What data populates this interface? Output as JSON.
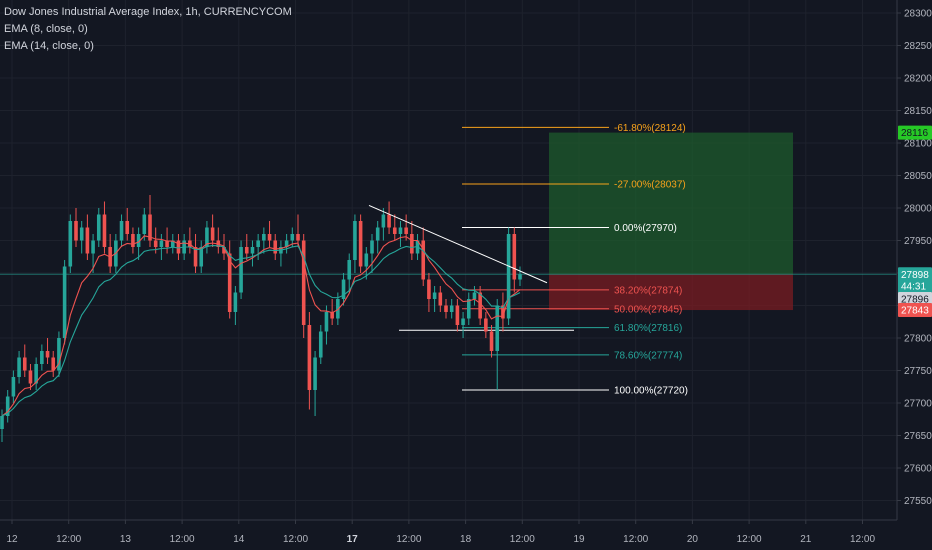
{
  "header": {
    "title": "Dow Jones Industrial Average Index, 1h, CURRENCYCOM",
    "indicators": [
      "EMA (8, close, 0)",
      "EMA (14, close, 0)"
    ]
  },
  "colors": {
    "background": "#131722",
    "up": "#26a69a",
    "down": "#ef5350",
    "ema8": "#ef5350",
    "ema14": "#26a69a",
    "fib_orange": "#f7a21b",
    "fib_white": "#ffffff",
    "fib_red": "#ef5350",
    "fib_teal": "#26a69a",
    "target_zone": "#1e5b2c",
    "stop_zone": "#7a1c22",
    "price_line": "#26a69a",
    "text": "#b2b5be"
  },
  "price_axis": {
    "ticks": [
      "28300",
      "28250",
      "28200",
      "28150",
      "28100",
      "28050",
      "28000",
      "27950",
      "27900",
      "27850",
      "27800",
      "27750",
      "27700",
      "27650",
      "27600",
      "27550"
    ],
    "labels": [
      {
        "text": "28116",
        "value": 28116,
        "color": "#26c926",
        "text_color": "#131722"
      },
      {
        "text": "27898",
        "value": 27898,
        "color": "#26a69a",
        "text_color": "#ffffff"
      },
      {
        "text": "44:31",
        "value": 27880,
        "color": "#26a69a",
        "text_color": "#ffffff"
      },
      {
        "text": "27896",
        "value": 27860,
        "color": "#d1d4dc",
        "text_color": "#131722"
      },
      {
        "text": "27843",
        "value": 27843,
        "color": "#ef5350",
        "text_color": "#ffffff"
      }
    ]
  },
  "time_axis": {
    "ticks": [
      {
        "label": "12",
        "bold": false
      },
      {
        "label": "12:00",
        "bold": false
      },
      {
        "label": "13",
        "bold": false
      },
      {
        "label": "12:00",
        "bold": false
      },
      {
        "label": "14",
        "bold": false
      },
      {
        "label": "12:00",
        "bold": false
      },
      {
        "label": "17",
        "bold": true
      },
      {
        "label": "12:00",
        "bold": false
      },
      {
        "label": "18",
        "bold": false
      },
      {
        "label": "12:00",
        "bold": false
      },
      {
        "label": "19",
        "bold": false
      },
      {
        "label": "12:00",
        "bold": false
      },
      {
        "label": "20",
        "bold": false
      },
      {
        "label": "12:00",
        "bold": false
      },
      {
        "label": "21",
        "bold": false
      },
      {
        "label": "12:00",
        "bold": false
      }
    ]
  },
  "chart_data": {
    "type": "candlestick",
    "title": "Dow Jones Industrial Average Index, 1h, CURRENCYCOM",
    "ylim": [
      27520,
      28320
    ],
    "last_price": 27898,
    "fibonacci": [
      {
        "label": "-61.80%(28124)",
        "value": 28124,
        "color": "orange"
      },
      {
        "label": "-27.00%(28037)",
        "value": 28037,
        "color": "orange"
      },
      {
        "label": "0.00%(27970)",
        "value": 27970,
        "color": "white"
      },
      {
        "label": "38.20%(27874)",
        "value": 27874,
        "color": "red"
      },
      {
        "label": "50.00%(27845)",
        "value": 27845,
        "color": "red"
      },
      {
        "label": "61.80%(27816)",
        "value": 27816,
        "color": "teal"
      },
      {
        "label": "78.60%(27774)",
        "value": 27774,
        "color": "teal"
      },
      {
        "label": "100.00%(27720)",
        "value": 27720,
        "color": "white"
      }
    ],
    "position": {
      "target": 28116,
      "entry": 27898,
      "stop": 27843
    },
    "trendline": {
      "start_value": 28004,
      "end_value": 27885
    },
    "support_line": {
      "value": 27812
    },
    "candles": [
      [
        27660,
        27690,
        27640,
        27680
      ],
      [
        27680,
        27720,
        27670,
        27710
      ],
      [
        27710,
        27750,
        27700,
        27740
      ],
      [
        27740,
        27780,
        27730,
        27770
      ],
      [
        27770,
        27790,
        27740,
        27750
      ],
      [
        27750,
        27760,
        27720,
        27730
      ],
      [
        27730,
        27770,
        27720,
        27760
      ],
      [
        27760,
        27790,
        27750,
        27780
      ],
      [
        27780,
        27800,
        27760,
        27770
      ],
      [
        27770,
        27780,
        27740,
        27750
      ],
      [
        27750,
        27810,
        27740,
        27800
      ],
      [
        27800,
        27920,
        27790,
        27910
      ],
      [
        27910,
        27990,
        27900,
        27980
      ],
      [
        27980,
        28000,
        27940,
        27950
      ],
      [
        27950,
        27980,
        27930,
        27970
      ],
      [
        27970,
        27990,
        27920,
        27930
      ],
      [
        27930,
        27960,
        27900,
        27950
      ],
      [
        27950,
        28000,
        27940,
        27990
      ],
      [
        27990,
        28010,
        27930,
        27940
      ],
      [
        27940,
        27960,
        27900,
        27910
      ],
      [
        27910,
        27960,
        27900,
        27950
      ],
      [
        27950,
        27990,
        27940,
        27980
      ],
      [
        27980,
        28000,
        27950,
        27960
      ],
      [
        27960,
        27970,
        27930,
        27940
      ],
      [
        27940,
        27970,
        27920,
        27960
      ],
      [
        27960,
        28000,
        27950,
        27990
      ],
      [
        27990,
        28020,
        27940,
        27950
      ],
      [
        27950,
        27970,
        27930,
        27940
      ],
      [
        27940,
        27960,
        27920,
        27950
      ],
      [
        27950,
        27970,
        27930,
        27940
      ],
      [
        27940,
        27960,
        27930,
        27950
      ],
      [
        27950,
        27960,
        27920,
        27930
      ],
      [
        27930,
        27960,
        27920,
        27950
      ],
      [
        27950,
        27970,
        27930,
        27940
      ],
      [
        27940,
        27960,
        27900,
        27910
      ],
      [
        27910,
        27950,
        27900,
        27940
      ],
      [
        27940,
        27980,
        27930,
        27970
      ],
      [
        27970,
        27990,
        27940,
        27950
      ],
      [
        27950,
        27970,
        27930,
        27940
      ],
      [
        27940,
        27960,
        27920,
        27930
      ],
      [
        27930,
        27950,
        27830,
        27840
      ],
      [
        27840,
        27880,
        27820,
        27870
      ],
      [
        27870,
        27950,
        27860,
        27940
      ],
      [
        27940,
        27960,
        27920,
        27930
      ],
      [
        27930,
        27950,
        27910,
        27940
      ],
      [
        27940,
        27960,
        27920,
        27950
      ],
      [
        27950,
        27970,
        27930,
        27960
      ],
      [
        27960,
        27980,
        27940,
        27950
      ],
      [
        27950,
        27960,
        27920,
        27930
      ],
      [
        27930,
        27950,
        27910,
        27940
      ],
      [
        27940,
        27960,
        27930,
        27950
      ],
      [
        27950,
        27970,
        27940,
        27960
      ],
      [
        27960,
        27990,
        27940,
        27950
      ],
      [
        27950,
        27960,
        27800,
        27820
      ],
      [
        27820,
        27840,
        27690,
        27720
      ],
      [
        27720,
        27780,
        27680,
        27770
      ],
      [
        27770,
        27820,
        27760,
        27810
      ],
      [
        27810,
        27850,
        27790,
        27840
      ],
      [
        27840,
        27860,
        27820,
        27830
      ],
      [
        27830,
        27870,
        27820,
        27860
      ],
      [
        27860,
        27900,
        27850,
        27890
      ],
      [
        27890,
        27930,
        27870,
        27920
      ],
      [
        27920,
        27990,
        27900,
        27980
      ],
      [
        27980,
        27990,
        27900,
        27910
      ],
      [
        27910,
        27940,
        27890,
        27930
      ],
      [
        27930,
        27960,
        27900,
        27950
      ],
      [
        27950,
        27980,
        27930,
        27970
      ],
      [
        27970,
        28000,
        27950,
        27990
      ],
      [
        27990,
        28010,
        27960,
        27970
      ],
      [
        27970,
        27990,
        27950,
        27960
      ],
      [
        27960,
        27980,
        27940,
        27970
      ],
      [
        27970,
        27990,
        27950,
        27960
      ],
      [
        27960,
        27980,
        27920,
        27930
      ],
      [
        27930,
        27960,
        27920,
        27950
      ],
      [
        27950,
        27970,
        27880,
        27890
      ],
      [
        27890,
        27900,
        27840,
        27860
      ],
      [
        27860,
        27880,
        27840,
        27870
      ],
      [
        27870,
        27880,
        27840,
        27850
      ],
      [
        27850,
        27860,
        27830,
        27840
      ],
      [
        27840,
        27860,
        27830,
        27850
      ],
      [
        27850,
        27860,
        27810,
        27820
      ],
      [
        27820,
        27840,
        27800,
        27830
      ],
      [
        27830,
        27870,
        27820,
        27860
      ],
      [
        27860,
        27880,
        27850,
        27870
      ],
      [
        27870,
        27880,
        27820,
        27830
      ],
      [
        27830,
        27840,
        27800,
        27810
      ],
      [
        27810,
        27820,
        27770,
        27780
      ],
      [
        27780,
        27860,
        27720,
        27850
      ],
      [
        27850,
        27870,
        27810,
        27830
      ],
      [
        27830,
        27970,
        27820,
        27960
      ],
      [
        27960,
        27970,
        27870,
        27890
      ],
      [
        27890,
        27910,
        27880,
        27898
      ]
    ]
  }
}
